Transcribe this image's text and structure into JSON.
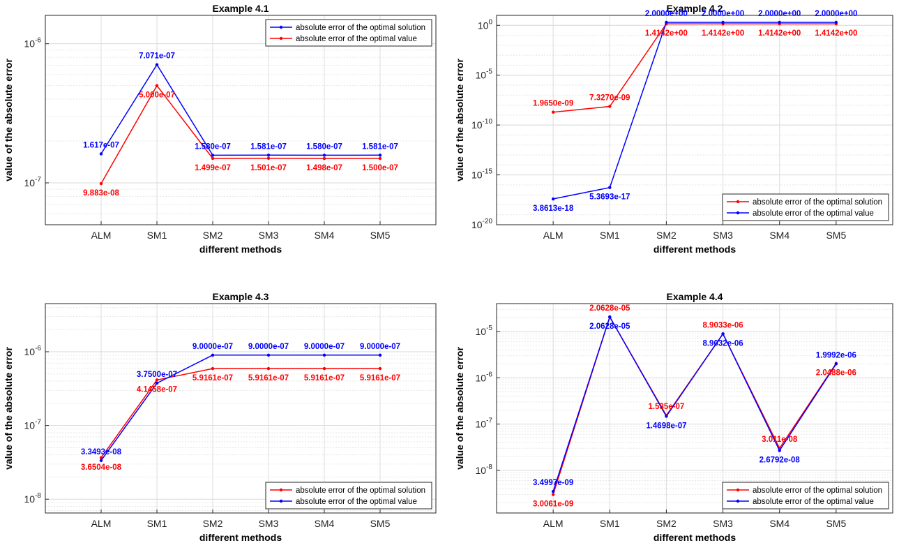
{
  "chart_data": [
    {
      "type": "line",
      "title": "Example 4.1",
      "xlabel": "different methods",
      "ylabel": "value of the absolute error",
      "yscale": "log",
      "ylim": [
        5e-08,
        1.6e-06
      ],
      "yticks": [
        {
          "value": 1e-07,
          "exp": "-7"
        },
        {
          "value": 1e-06,
          "exp": "-6"
        }
      ],
      "categories": [
        "ALM",
        "SM1",
        "SM2",
        "SM3",
        "SM4",
        "SM5"
      ],
      "grid": true,
      "legend_position": "top-right",
      "series": [
        {
          "name": "absolute error of the optimal solution",
          "color": "#0000ff",
          "values": [
            1.617e-07,
            7.071e-07,
            1.58e-07,
            1.581e-07,
            1.58e-07,
            1.581e-07
          ],
          "labels": [
            "1.617e-07",
            "7.071e-07",
            "1.580e-07",
            "1.581e-07",
            "1.580e-07",
            "1.581e-07"
          ],
          "label_side": [
            "above",
            "above",
            "above",
            "above",
            "above",
            "above"
          ]
        },
        {
          "name": "absolute error of the optimal value",
          "color": "#ff0000",
          "values": [
            9.883e-08,
            5e-07,
            1.499e-07,
            1.501e-07,
            1.498e-07,
            1.5e-07
          ],
          "labels": [
            "9.883e-08",
            "5.000e-07",
            "1.499e-07",
            "1.501e-07",
            "1.498e-07",
            "1.500e-07"
          ],
          "label_side": [
            "below",
            "below",
            "below",
            "below",
            "below",
            "below"
          ]
        }
      ]
    },
    {
      "type": "line",
      "title": "Example 4.2",
      "xlabel": "different methods",
      "ylabel": "value of the absolute error",
      "yscale": "log",
      "ylim": [
        1e-20,
        10.0
      ],
      "yticks": [
        {
          "value": 1e-20,
          "exp": "-20"
        },
        {
          "value": 1e-15,
          "exp": "-15"
        },
        {
          "value": 1e-10,
          "exp": "-10"
        },
        {
          "value": 1e-05,
          "exp": "-5"
        },
        {
          "value": 1,
          "exp": "0"
        }
      ],
      "categories": [
        "ALM",
        "SM1",
        "SM2",
        "SM3",
        "SM4",
        "SM5"
      ],
      "grid": true,
      "legend_position": "bottom-right",
      "series": [
        {
          "name": "absolute error of the optimal solution",
          "color": "#ff0000",
          "values": [
            1.965e-09,
            7.327e-09,
            1.4142,
            1.4142,
            1.4142,
            1.4142
          ],
          "labels": [
            "1.9650e-09",
            "7.3270e-09",
            "1.4142e+00",
            "1.4142e+00",
            "1.4142e+00",
            "1.4142e+00"
          ],
          "label_side": [
            "above",
            "above",
            "below",
            "below",
            "below",
            "below"
          ]
        },
        {
          "name": "absolute error of the optimal value",
          "color": "#0000ff",
          "values": [
            3.8613e-18,
            5.3693e-17,
            2.0,
            2.0,
            2.0,
            2.0
          ],
          "labels": [
            "3.8613e-18",
            "5.3693e-17",
            "2.0000e+00",
            "2.0000e+00",
            "2.0000e+00",
            "2.0000e+00"
          ],
          "label_side": [
            "below",
            "below",
            "above",
            "above",
            "above",
            "above"
          ]
        }
      ]
    },
    {
      "type": "line",
      "title": "Example 4.3",
      "xlabel": "different methods",
      "ylabel": "value of the absolute error",
      "yscale": "log",
      "ylim": [
        6.5e-09,
        4.5e-06
      ],
      "yticks": [
        {
          "value": 1e-08,
          "exp": "-8"
        },
        {
          "value": 1e-07,
          "exp": "-7"
        },
        {
          "value": 1e-06,
          "exp": "-6"
        }
      ],
      "categories": [
        "ALM",
        "SM1",
        "SM2",
        "SM3",
        "SM4",
        "SM5"
      ],
      "grid": true,
      "legend_position": "bottom-right",
      "series": [
        {
          "name": "absolute error of the optimal solution",
          "color": "#ff0000",
          "values": [
            3.6504e-08,
            4.1458e-07,
            5.9161e-07,
            5.9161e-07,
            5.9161e-07,
            5.9161e-07
          ],
          "labels": [
            "3.6504e-08",
            "4.1458e-07",
            "5.9161e-07",
            "5.9161e-07",
            "5.9161e-07",
            "5.9161e-07"
          ],
          "label_side": [
            "below",
            "below",
            "below",
            "below",
            "below",
            "below"
          ]
        },
        {
          "name": "absolute error of the optimal value",
          "color": "#0000ff",
          "values": [
            3.3493e-08,
            3.75e-07,
            9e-07,
            9e-07,
            9e-07,
            9e-07
          ],
          "labels": [
            "3.3493e-08",
            "3.7500e-07",
            "9.0000e-07",
            "9.0000e-07",
            "9.0000e-07",
            "9.0000e-07"
          ],
          "label_side": [
            "above",
            "above",
            "above",
            "above",
            "above",
            "above"
          ]
        }
      ]
    },
    {
      "type": "line",
      "title": "Example 4.4",
      "xlabel": "different methods",
      "ylabel": "value of the absolute error",
      "yscale": "log",
      "ylim": [
        1.2e-09,
        4e-05
      ],
      "yticks": [
        {
          "value": 1e-08,
          "exp": "-8"
        },
        {
          "value": 1e-07,
          "exp": "-7"
        },
        {
          "value": 1e-06,
          "exp": "-6"
        },
        {
          "value": 1e-05,
          "exp": "-5"
        }
      ],
      "categories": [
        "ALM",
        "SM1",
        "SM2",
        "SM3",
        "SM4",
        "SM5"
      ],
      "grid": true,
      "legend_position": "bottom-right",
      "series": [
        {
          "name": "absolute error of the optimal solution",
          "color": "#ff0000",
          "values": [
            3.0061e-09,
            2.0628e-05,
            1.535e-07,
            8.9033e-06,
            3.011e-08,
            2.0488e-06
          ],
          "labels": [
            "3.0061e-09",
            "2.0628e-05",
            "1.535e-07",
            "8.9033e-06",
            "3.011e-08",
            "2.0488e-06"
          ],
          "label_side": [
            "below",
            "above",
            "above",
            "above",
            "above",
            "below"
          ]
        },
        {
          "name": "absolute error of the optimal value",
          "color": "#0000ff",
          "values": [
            3.4997e-09,
            2.0628e-05,
            1.4698e-07,
            8.9032e-06,
            2.6792e-08,
            1.9992e-06
          ],
          "labels": [
            "3.4997e-09",
            "2.0628e-05",
            "1.4698e-07",
            "8.9032e-06",
            "2.6792e-08",
            "1.9992e-06"
          ],
          "label_side": [
            "above",
            "below",
            "below",
            "below",
            "below",
            "above"
          ]
        }
      ]
    }
  ]
}
